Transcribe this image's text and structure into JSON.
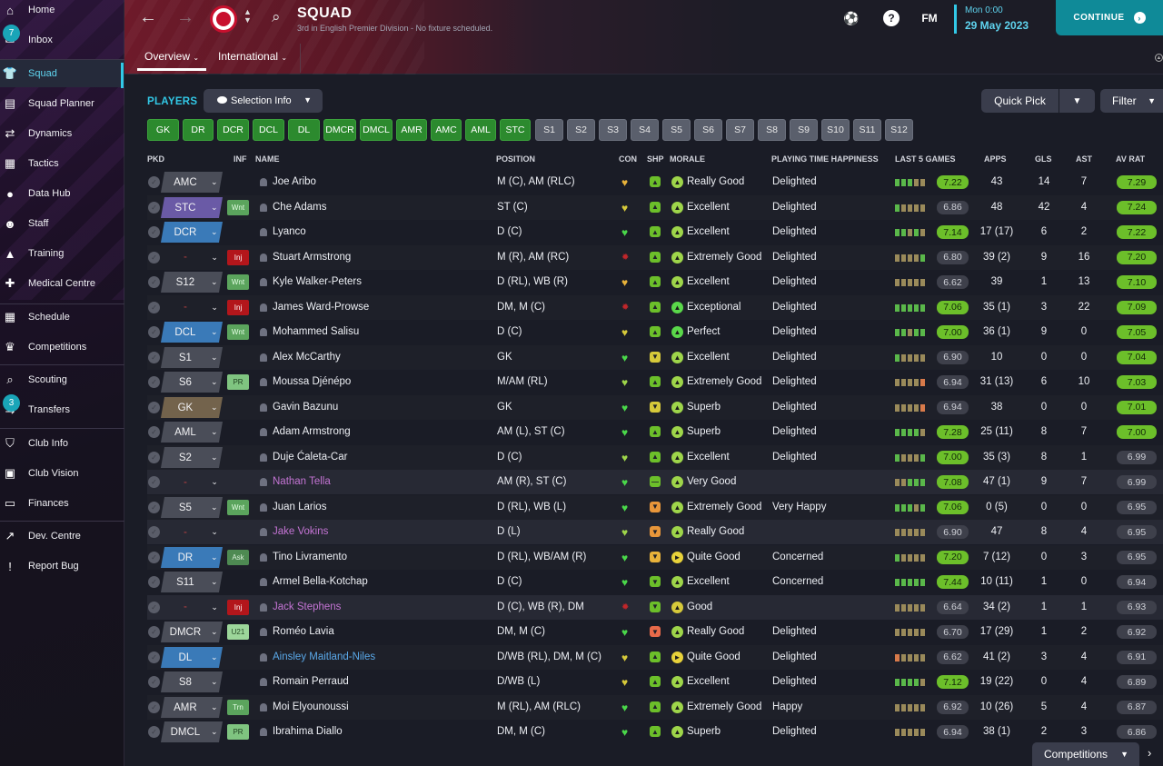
{
  "sidebar": {
    "items": [
      {
        "label": "Home",
        "icon": "home-icon",
        "glyph": "⌂"
      },
      {
        "label": "Inbox",
        "icon": "inbox-icon",
        "glyph": "✉",
        "badge": "7"
      },
      {
        "label": "Squad",
        "icon": "shirt-icon",
        "glyph": "👕",
        "active": true
      },
      {
        "label": "Squad Planner",
        "icon": "clipboard-icon",
        "glyph": "▤"
      },
      {
        "label": "Dynamics",
        "icon": "dynamics-icon",
        "glyph": "⇄"
      },
      {
        "label": "Tactics",
        "icon": "tactics-board-icon",
        "glyph": "▦"
      },
      {
        "label": "Data Hub",
        "icon": "data-hub-icon",
        "glyph": "●"
      },
      {
        "label": "Staff",
        "icon": "staff-icon",
        "glyph": "☻"
      },
      {
        "label": "Training",
        "icon": "training-cone-icon",
        "glyph": "▲"
      },
      {
        "label": "Medical Centre",
        "icon": "medical-kit-icon",
        "glyph": "✚"
      },
      {
        "label": "Schedule",
        "icon": "calendar-icon",
        "glyph": "▦"
      },
      {
        "label": "Competitions",
        "icon": "trophy-icon",
        "glyph": "♛"
      },
      {
        "label": "Scouting",
        "icon": "magnifier-icon",
        "glyph": "⌕"
      },
      {
        "label": "Transfers",
        "icon": "transfers-icon",
        "glyph": "⇆",
        "badge": "3"
      },
      {
        "label": "Club Info",
        "icon": "shield-icon",
        "glyph": "⛉"
      },
      {
        "label": "Club Vision",
        "icon": "briefcase-icon",
        "glyph": "▣"
      },
      {
        "label": "Finances",
        "icon": "money-icon",
        "glyph": "▭"
      },
      {
        "label": "Dev. Centre",
        "icon": "dev-centre-icon",
        "glyph": "↗"
      },
      {
        "label": "Report Bug",
        "icon": "report-bug-icon",
        "glyph": "!"
      }
    ]
  },
  "header": {
    "title": "SQUAD",
    "subtitle": "3rd in English Premier Division - No fixture scheduled.",
    "tabs": [
      "Overview",
      "International"
    ],
    "date_line1": "Mon 0:00",
    "date_line2": "29 May 2023",
    "fm_label": "FM",
    "help_label": "?",
    "continue_label": "CONTINUE"
  },
  "toolbar": {
    "section_label": "PLAYERS",
    "selection_info": "Selection Info",
    "quick_pick": "Quick Pick",
    "filter": "Filter",
    "competitions": "Competitions"
  },
  "position_buttons": {
    "green": [
      "GK",
      "DR",
      "DCR",
      "DCL",
      "DL",
      "DMCR",
      "DMCL",
      "AMR",
      "AMC",
      "AML",
      "STC"
    ],
    "grey": [
      "S1",
      "S2",
      "S3",
      "S4",
      "S5",
      "S6",
      "S7",
      "S8",
      "S9",
      "S10",
      "S11",
      "S12"
    ]
  },
  "columns": [
    "PKD",
    "INF",
    "NAME",
    "POSITION",
    "CON",
    "SHP",
    "MORALE",
    "PLAYING TIME HAPPINESS",
    "LAST 5 GAMES",
    "APPS",
    "GLS",
    "AST",
    "AV RAT"
  ],
  "colors": {
    "accent": "#32c8e6",
    "green_rating": "#6cbf2a",
    "injury": "#b3161b",
    "loan_name": "#c474d4"
  },
  "players": [
    {
      "sel": "AMC",
      "selc": "grey",
      "inf": "",
      "name": "Joe Aribo",
      "pos": "M (C), AM (RLC)",
      "con": "#e8b23a",
      "shp": "#6cbf2a",
      "shpg": "▲",
      "morc": "#9ed54a",
      "morg": "▲",
      "morale": "Really Good",
      "pth": "Delighted",
      "form": [
        "#5ab84a",
        "#5ab84a",
        "#5ab84a",
        "#9a8a5a",
        "#9a8a5a"
      ],
      "rating": "7.22",
      "ratc": "g",
      "apps": "43",
      "gls": "14",
      "ast": "7",
      "avrat": "7.29",
      "avrc": "g"
    },
    {
      "sel": "STC",
      "selc": "purple",
      "inf": "Wnt",
      "name": "Che Adams",
      "pos": "ST (C)",
      "con": "#d6c93a",
      "shp": "#6cbf2a",
      "shpg": "▲",
      "morc": "#9ed54a",
      "morg": "▲",
      "morale": "Excellent",
      "pth": "Delighted",
      "form": [
        "#5ab84a",
        "#9a8a5a",
        "#9a8a5a",
        "#9a8a5a",
        "#9a8a5a"
      ],
      "rating": "6.86",
      "ratc": "n",
      "apps": "48",
      "gls": "42",
      "ast": "4",
      "avrat": "7.24",
      "avrc": "g"
    },
    {
      "sel": "DCR",
      "selc": "blue",
      "inf": "",
      "name": "Lyanco",
      "pos": "D (C)",
      "con": "#4ad84a",
      "shp": "#6cbf2a",
      "shpg": "▲",
      "morc": "#9ed54a",
      "morg": "▲",
      "morale": "Excellent",
      "pth": "Delighted",
      "form": [
        "#5ab84a",
        "#5ab84a",
        "#9a8a5a",
        "#5ab84a",
        "#9a8a5a"
      ],
      "rating": "7.14",
      "ratc": "g",
      "apps": "17 (17)",
      "gls": "6",
      "ast": "2",
      "avrat": "7.22",
      "avrc": "g"
    },
    {
      "sel": "-",
      "selc": "none",
      "inf": "Inj",
      "name": "Stuart Armstrong",
      "pos": "M (R), AM (RC)",
      "con": "#c0262a",
      "shp": "#6cbf2a",
      "shpg": "▲",
      "morc": "#9ed54a",
      "morg": "▲",
      "morale": "Extremely Good",
      "pth": "Delighted",
      "form": [
        "#9a8a5a",
        "#9a8a5a",
        "#9a8a5a",
        "#9a8a5a",
        "#5ab84a"
      ],
      "rating": "6.80",
      "ratc": "n",
      "apps": "39 (2)",
      "gls": "9",
      "ast": "16",
      "avrat": "7.20",
      "avrc": "g"
    },
    {
      "sel": "S12",
      "selc": "grey",
      "inf": "Wnt",
      "name": "Kyle Walker-Peters",
      "pos": "D (RL), WB (R)",
      "con": "#e8b23a",
      "shp": "#6cbf2a",
      "shpg": "▲",
      "morc": "#9ed54a",
      "morg": "▲",
      "morale": "Excellent",
      "pth": "Delighted",
      "form": [
        "#9a8a5a",
        "#9a8a5a",
        "#9a8a5a",
        "#9a8a5a",
        "#9a8a5a"
      ],
      "rating": "6.62",
      "ratc": "n",
      "apps": "39",
      "gls": "1",
      "ast": "13",
      "avrat": "7.10",
      "avrc": "g"
    },
    {
      "sel": "-",
      "selc": "none",
      "inf": "Inj",
      "name": "James Ward-Prowse",
      "pos": "DM, M (C)",
      "con": "#c0262a",
      "shp": "#6cbf2a",
      "shpg": "▲",
      "morc": "#5ad84a",
      "morg": "▲",
      "morale": "Exceptional",
      "pth": "Delighted",
      "form": [
        "#5ab84a",
        "#5ab84a",
        "#5ab84a",
        "#5ab84a",
        "#5ab84a"
      ],
      "rating": "7.06",
      "ratc": "g",
      "apps": "35 (1)",
      "gls": "3",
      "ast": "22",
      "avrat": "7.09",
      "avrc": "g"
    },
    {
      "sel": "DCL",
      "selc": "blue",
      "inf": "Wnt",
      "name": "Mohammed Salisu",
      "pos": "D (C)",
      "con": "#d6c93a",
      "shp": "#6cbf2a",
      "shpg": "▲",
      "morc": "#5ad84a",
      "morg": "▲",
      "morale": "Perfect",
      "pth": "Delighted",
      "form": [
        "#5ab84a",
        "#5ab84a",
        "#9a8a5a",
        "#5ab84a",
        "#5ab84a"
      ],
      "rating": "7.00",
      "ratc": "g",
      "apps": "36 (1)",
      "gls": "9",
      "ast": "0",
      "avrat": "7.05",
      "avrc": "g"
    },
    {
      "sel": "S1",
      "selc": "grey",
      "inf": "",
      "name": "Alex McCarthy",
      "pos": "GK",
      "con": "#4ad84a",
      "shp": "#d6c93a",
      "shpg": "▼",
      "morc": "#9ed54a",
      "morg": "▲",
      "morale": "Excellent",
      "pth": "Delighted",
      "form": [
        "#5ab84a",
        "#9a8a5a",
        "#9a8a5a",
        "#9a8a5a",
        "#9a8a5a"
      ],
      "rating": "6.90",
      "ratc": "n",
      "apps": "10",
      "gls": "0",
      "ast": "0",
      "avrat": "7.04",
      "avrc": "g"
    },
    {
      "sel": "S6",
      "selc": "grey",
      "inf": "PR",
      "name": "Moussa Djénépo",
      "pos": "M/AM (RL)",
      "con": "#9ed54a",
      "shp": "#6cbf2a",
      "shpg": "▲",
      "morc": "#9ed54a",
      "morg": "▲",
      "morale": "Extremely Good",
      "pth": "Delighted",
      "form": [
        "#9a8a5a",
        "#9a8a5a",
        "#9a8a5a",
        "#9a8a5a",
        "#d87a4a"
      ],
      "rating": "6.94",
      "ratc": "n",
      "apps": "31 (13)",
      "gls": "6",
      "ast": "10",
      "avrat": "7.03",
      "avrc": "g"
    },
    {
      "sel": "GK",
      "selc": "brown",
      "inf": "",
      "name": "Gavin Bazunu",
      "pos": "GK",
      "con": "#4ad84a",
      "shp": "#d6c93a",
      "shpg": "▼",
      "morc": "#9ed54a",
      "morg": "▲",
      "morale": "Superb",
      "pth": "Delighted",
      "form": [
        "#9a8a5a",
        "#9a8a5a",
        "#9a8a5a",
        "#9a8a5a",
        "#d87a4a"
      ],
      "rating": "6.94",
      "ratc": "n",
      "apps": "38",
      "gls": "0",
      "ast": "0",
      "avrat": "7.01",
      "avrc": "g"
    },
    {
      "sel": "AML",
      "selc": "grey",
      "inf": "",
      "name": "Adam Armstrong",
      "pos": "AM (L), ST (C)",
      "con": "#4ad84a",
      "shp": "#6cbf2a",
      "shpg": "▲",
      "morc": "#9ed54a",
      "morg": "▲",
      "morale": "Superb",
      "pth": "Delighted",
      "form": [
        "#5ab84a",
        "#5ab84a",
        "#5ab84a",
        "#5ab84a",
        "#9a8a5a"
      ],
      "rating": "7.28",
      "ratc": "g",
      "apps": "25 (11)",
      "gls": "8",
      "ast": "7",
      "avrat": "7.00",
      "avrc": "g"
    },
    {
      "sel": "S2",
      "selc": "grey",
      "inf": "",
      "name": "Duje Ćaleta-Car",
      "pos": "D (C)",
      "con": "#9ed54a",
      "shp": "#6cbf2a",
      "shpg": "▲",
      "morc": "#9ed54a",
      "morg": "▲",
      "morale": "Excellent",
      "pth": "Delighted",
      "form": [
        "#5ab84a",
        "#9a8a5a",
        "#9a8a5a",
        "#9a8a5a",
        "#5ab84a"
      ],
      "rating": "7.00",
      "ratc": "g",
      "apps": "35 (3)",
      "gls": "8",
      "ast": "1",
      "avrat": "6.99",
      "avrc": "n"
    },
    {
      "sel": "-",
      "selc": "none",
      "inf": "",
      "name": "Nathan Tella",
      "nc": "loan",
      "pos": "AM (R), ST (C)",
      "con": "#4ad84a",
      "shp": "#6cbf2a",
      "shpg": "—",
      "morc": "#9ed54a",
      "morg": "▲",
      "morale": "Very Good",
      "pth": "",
      "form": [
        "#9a8a5a",
        "#9a8a5a",
        "#5ab84a",
        "#5ab84a",
        "#5ab84a"
      ],
      "rating": "7.08",
      "ratc": "g",
      "apps": "47 (1)",
      "gls": "9",
      "ast": "7",
      "avrat": "6.99",
      "avrc": "n",
      "dim": true
    },
    {
      "sel": "S5",
      "selc": "grey",
      "inf": "Wnt",
      "name": "Juan Larios",
      "pos": "D (RL), WB (L)",
      "con": "#4ad84a",
      "shp": "#e8963a",
      "shpg": "▼",
      "morc": "#9ed54a",
      "morg": "▲",
      "morale": "Extremely Good",
      "pth": "Very Happy",
      "form": [
        "#5ab84a",
        "#5ab84a",
        "#5ab84a",
        "#9a8a5a",
        "#5ab84a"
      ],
      "rating": "7.06",
      "ratc": "g",
      "apps": "0 (5)",
      "gls": "0",
      "ast": "0",
      "avrat": "6.95",
      "avrc": "n"
    },
    {
      "sel": "-",
      "selc": "none",
      "inf": "",
      "name": "Jake Vokins",
      "nc": "loan",
      "pos": "D (L)",
      "con": "#9ed54a",
      "shp": "#e8963a",
      "shpg": "▼",
      "morc": "#9ed54a",
      "morg": "▲",
      "morale": "Really Good",
      "pth": "",
      "form": [
        "#9a8a5a",
        "#9a8a5a",
        "#9a8a5a",
        "#9a8a5a",
        "#9a8a5a"
      ],
      "rating": "6.90",
      "ratc": "n",
      "apps": "47",
      "gls": "8",
      "ast": "4",
      "avrat": "6.95",
      "avrc": "n",
      "dim": true
    },
    {
      "sel": "DR",
      "selc": "blue",
      "inf": "Ask",
      "name": "Tino Livramento",
      "pos": "D (RL), WB/AM (R)",
      "con": "#4ad84a",
      "shp": "#e8b23a",
      "shpg": "▼",
      "morc": "#e8d23a",
      "morg": "►",
      "morale": "Quite Good",
      "pth": "Concerned",
      "form": [
        "#5ab84a",
        "#9a8a5a",
        "#9a8a5a",
        "#9a8a5a",
        "#9a8a5a"
      ],
      "rating": "7.20",
      "ratc": "g",
      "apps": "7 (12)",
      "gls": "0",
      "ast": "3",
      "avrat": "6.95",
      "avrc": "n"
    },
    {
      "sel": "S11",
      "selc": "grey",
      "inf": "",
      "name": "Armel Bella-Kotchap",
      "pos": "D (C)",
      "con": "#4ad84a",
      "shp": "#6cbf2a",
      "shpg": "▼",
      "morc": "#9ed54a",
      "morg": "▲",
      "morale": "Excellent",
      "pth": "Concerned",
      "form": [
        "#5ab84a",
        "#5ab84a",
        "#5ab84a",
        "#5ab84a",
        "#5ab84a"
      ],
      "rating": "7.44",
      "ratc": "g",
      "apps": "10 (11)",
      "gls": "1",
      "ast": "0",
      "avrat": "6.94",
      "avrc": "n"
    },
    {
      "sel": "-",
      "selc": "none",
      "inf": "Inj",
      "name": "Jack Stephens",
      "nc": "loan",
      "pos": "D (C), WB (R), DM",
      "con": "#c0262a",
      "shp": "#6cbf2a",
      "shpg": "▼",
      "morc": "#d6c93a",
      "morg": "▲",
      "morale": "Good",
      "pth": "",
      "form": [
        "#9a8a5a",
        "#9a8a5a",
        "#9a8a5a",
        "#9a8a5a",
        "#9a8a5a"
      ],
      "rating": "6.64",
      "ratc": "n",
      "apps": "34 (2)",
      "gls": "1",
      "ast": "1",
      "avrat": "6.93",
      "avrc": "n",
      "dim": true
    },
    {
      "sel": "DMCR",
      "selc": "grey",
      "inf": "U21",
      "name": "Roméo Lavia",
      "pos": "DM, M (C)",
      "con": "#4ad84a",
      "shp": "#e86a4a",
      "shpg": "▼",
      "morc": "#9ed54a",
      "morg": "▲",
      "morale": "Really Good",
      "pth": "Delighted",
      "form": [
        "#9a8a5a",
        "#9a8a5a",
        "#9a8a5a",
        "#9a8a5a",
        "#9a8a5a"
      ],
      "rating": "6.70",
      "ratc": "n",
      "apps": "17 (29)",
      "gls": "1",
      "ast": "2",
      "avrat": "6.92",
      "avrc": "n"
    },
    {
      "sel": "DL",
      "selc": "blue",
      "inf": "",
      "name": "Ainsley Maitland-Niles",
      "nc": "link",
      "pos": "D/WB (RL), DM, M (C)",
      "con": "#d6c93a",
      "shp": "#6cbf2a",
      "shpg": "▲",
      "morc": "#e8d23a",
      "morg": "►",
      "morale": "Quite Good",
      "pth": "Delighted",
      "form": [
        "#d87a4a",
        "#9a8a5a",
        "#9a8a5a",
        "#9a8a5a",
        "#9a8a5a"
      ],
      "rating": "6.62",
      "ratc": "n",
      "apps": "41 (2)",
      "gls": "3",
      "ast": "4",
      "avrat": "6.91",
      "avrc": "n"
    },
    {
      "sel": "S8",
      "selc": "grey",
      "inf": "",
      "name": "Romain Perraud",
      "pos": "D/WB (L)",
      "con": "#d6c93a",
      "shp": "#6cbf2a",
      "shpg": "▲",
      "morc": "#9ed54a",
      "morg": "▲",
      "morale": "Excellent",
      "pth": "Delighted",
      "form": [
        "#5ab84a",
        "#5ab84a",
        "#5ab84a",
        "#5ab84a",
        "#9a8a5a"
      ],
      "rating": "7.12",
      "ratc": "g",
      "apps": "19 (22)",
      "gls": "0",
      "ast": "4",
      "avrat": "6.89",
      "avrc": "n"
    },
    {
      "sel": "AMR",
      "selc": "grey",
      "inf": "Trn",
      "name": "Moi Elyounoussi",
      "pos": "M (RL), AM (RLC)",
      "con": "#4ad84a",
      "shp": "#6cbf2a",
      "shpg": "▲",
      "morc": "#9ed54a",
      "morg": "▲",
      "morale": "Extremely Good",
      "pth": "Happy",
      "form": [
        "#9a8a5a",
        "#9a8a5a",
        "#9a8a5a",
        "#9a8a5a",
        "#9a8a5a"
      ],
      "rating": "6.92",
      "ratc": "n",
      "apps": "10 (26)",
      "gls": "5",
      "ast": "4",
      "avrat": "6.87",
      "avrc": "n"
    },
    {
      "sel": "DMCL",
      "selc": "grey",
      "inf": "PR",
      "name": "Ibrahima Diallo",
      "pos": "DM, M (C)",
      "con": "#4ad84a",
      "shp": "#6cbf2a",
      "shpg": "▲",
      "morc": "#9ed54a",
      "morg": "▲",
      "morale": "Superb",
      "pth": "Delighted",
      "form": [
        "#9a8a5a",
        "#9a8a5a",
        "#9a8a5a",
        "#9a8a5a",
        "#9a8a5a"
      ],
      "rating": "6.94",
      "ratc": "n",
      "apps": "38 (1)",
      "gls": "2",
      "ast": "3",
      "avrat": "6.86",
      "avrc": "n"
    }
  ]
}
